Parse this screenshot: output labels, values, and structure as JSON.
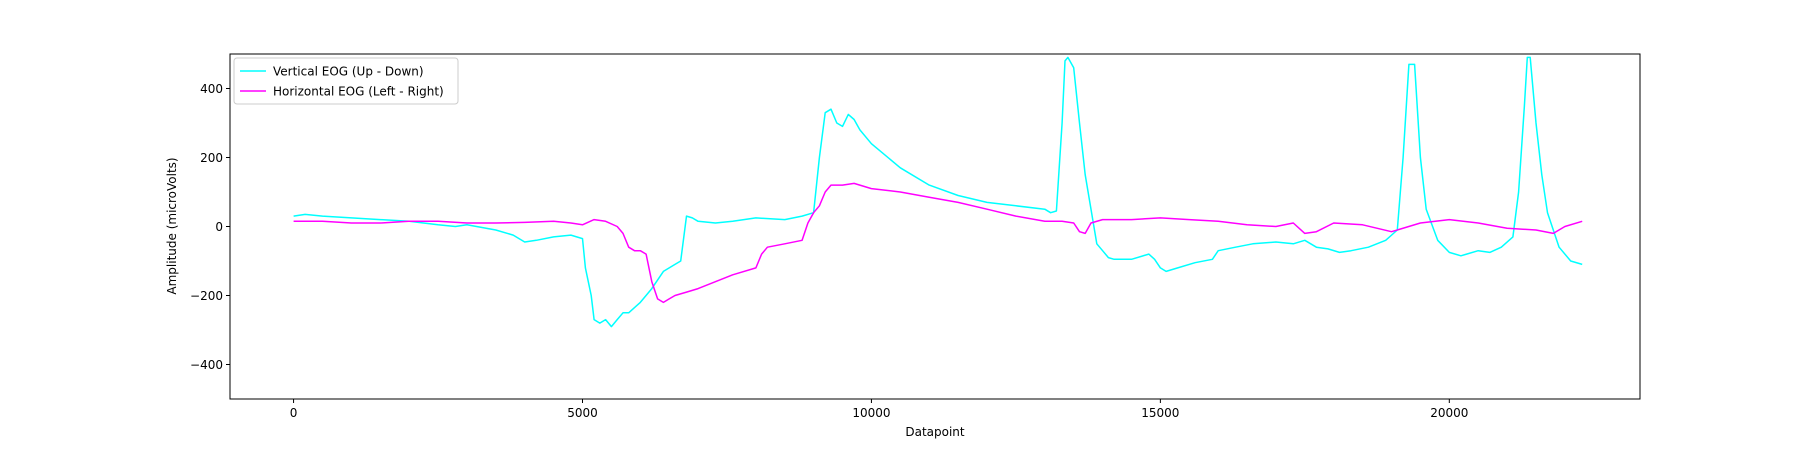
{
  "chart_data": {
    "type": "line",
    "title": "",
    "xlabel": "Datapoint",
    "ylabel": "Amplitude (microVolts)",
    "xlim": [
      -1100,
      23300
    ],
    "ylim": [
      -500,
      500
    ],
    "x_ticks": [
      0,
      5000,
      10000,
      15000,
      20000
    ],
    "x_tick_labels": [
      "0",
      "5000",
      "10000",
      "15000",
      "20000"
    ],
    "y_ticks": [
      -400,
      -200,
      0,
      200,
      400
    ],
    "y_tick_labels": [
      "−400",
      "−200",
      "0",
      "200",
      "400"
    ],
    "grid": false,
    "legend_position": "top-left",
    "series": [
      {
        "name": "Vertical EOG (Up - Down)",
        "color": "#00ffff",
        "x": [
          0,
          200,
          500,
          1000,
          1500,
          2000,
          2500,
          2800,
          3000,
          3500,
          3800,
          4000,
          4200,
          4500,
          4800,
          5000,
          5050,
          5100,
          5150,
          5200,
          5300,
          5400,
          5500,
          5600,
          5700,
          5800,
          6000,
          6200,
          6400,
          6600,
          6700,
          6800,
          6900,
          7000,
          7300,
          7600,
          8000,
          8500,
          8800,
          9000,
          9100,
          9200,
          9300,
          9400,
          9500,
          9600,
          9700,
          9800,
          10000,
          10500,
          11000,
          11500,
          12000,
          12500,
          13000,
          13100,
          13200,
          13300,
          13350,
          13400,
          13500,
          13600,
          13700,
          13800,
          13900,
          14000,
          14100,
          14200,
          14500,
          14800,
          14900,
          15000,
          15100,
          15300,
          15600,
          15900,
          16000,
          16300,
          16600,
          17000,
          17300,
          17500,
          17700,
          17900,
          18100,
          18300,
          18600,
          18900,
          19100,
          19200,
          19300,
          19400,
          19500,
          19600,
          19800,
          20000,
          20200,
          20300,
          20500,
          20700,
          20900,
          21100,
          21200,
          21300,
          21350,
          21400,
          21500,
          21600,
          21700,
          21900,
          22100,
          22300
        ],
        "y": [
          30,
          35,
          30,
          25,
          20,
          15,
          5,
          0,
          5,
          -10,
          -25,
          -45,
          -40,
          -30,
          -25,
          -35,
          -120,
          -160,
          -200,
          -270,
          -280,
          -270,
          -290,
          -270,
          -250,
          -250,
          -220,
          -180,
          -130,
          -110,
          -100,
          30,
          25,
          15,
          10,
          15,
          25,
          20,
          30,
          40,
          200,
          330,
          340,
          300,
          290,
          325,
          310,
          280,
          240,
          170,
          120,
          90,
          70,
          60,
          50,
          40,
          45,
          300,
          480,
          490,
          460,
          300,
          150,
          50,
          -50,
          -70,
          -90,
          -95,
          -95,
          -80,
          -95,
          -120,
          -130,
          -120,
          -105,
          -95,
          -70,
          -60,
          -50,
          -45,
          -50,
          -40,
          -60,
          -65,
          -75,
          -70,
          -60,
          -40,
          -10,
          200,
          470,
          470,
          200,
          50,
          -40,
          -75,
          -85,
          -80,
          -70,
          -75,
          -60,
          -30,
          100,
          350,
          490,
          490,
          300,
          150,
          40,
          -60,
          -100,
          -110
        ]
      },
      {
        "name": "Horizontal EOG (Left - Right)",
        "color": "#ff00ff",
        "x": [
          0,
          500,
          1000,
          1500,
          2000,
          2500,
          3000,
          3500,
          4000,
          4500,
          4800,
          5000,
          5200,
          5400,
          5600,
          5700,
          5800,
          5900,
          6000,
          6100,
          6200,
          6300,
          6400,
          6500,
          6600,
          6800,
          7000,
          7300,
          7600,
          8000,
          8100,
          8200,
          8500,
          8800,
          8900,
          9000,
          9100,
          9200,
          9300,
          9500,
          9700,
          10000,
          10500,
          11000,
          11500,
          12000,
          12500,
          13000,
          13300,
          13500,
          13600,
          13700,
          13800,
          14000,
          14500,
          15000,
          15500,
          16000,
          16500,
          17000,
          17300,
          17500,
          17700,
          18000,
          18500,
          19000,
          19500,
          20000,
          20500,
          21000,
          21500,
          21800,
          22000,
          22300
        ],
        "y": [
          15,
          15,
          10,
          10,
          15,
          15,
          10,
          10,
          12,
          15,
          10,
          5,
          20,
          15,
          0,
          -20,
          -60,
          -70,
          -70,
          -80,
          -160,
          -210,
          -220,
          -210,
          -200,
          -190,
          -180,
          -160,
          -140,
          -120,
          -80,
          -60,
          -50,
          -40,
          10,
          40,
          60,
          100,
          120,
          120,
          125,
          110,
          100,
          85,
          70,
          50,
          30,
          15,
          15,
          10,
          -15,
          -20,
          10,
          20,
          20,
          25,
          20,
          15,
          5,
          0,
          10,
          -20,
          -15,
          10,
          5,
          -15,
          10,
          20,
          10,
          -5,
          -10,
          -20,
          0,
          15
        ]
      }
    ]
  }
}
